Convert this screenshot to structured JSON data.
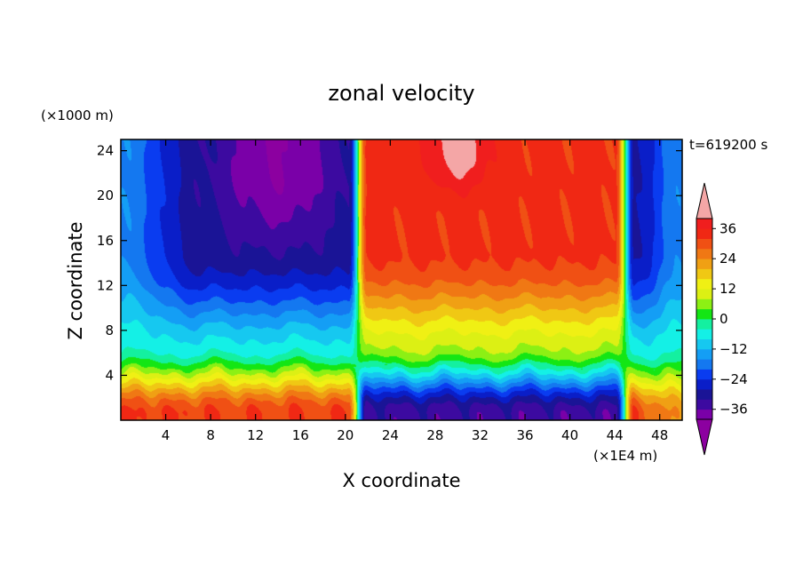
{
  "chart_data": {
    "type": "heatmap",
    "title": "zonal velocity",
    "xlabel": "X coordinate",
    "ylabel": "Z coordinate",
    "x_unit_label": "(×1E4 m)",
    "y_unit_label": "(×1000 m)",
    "time_label": "t=619200 s",
    "xlim": [
      0,
      50
    ],
    "ylim": [
      0,
      25
    ],
    "x_ticks": [
      4,
      8,
      12,
      16,
      20,
      24,
      28,
      32,
      36,
      40,
      44,
      48
    ],
    "y_ticks": [
      4,
      8,
      12,
      16,
      20,
      24
    ],
    "colorbar": {
      "levels": [
        -40,
        -36,
        -32,
        -28,
        -24,
        -20,
        -16,
        -12,
        -8,
        -4,
        0,
        4,
        8,
        12,
        16,
        20,
        24,
        28,
        32,
        36,
        40
      ],
      "tick_labels": [
        36,
        24,
        12,
        0,
        -12,
        -24,
        -36
      ],
      "under_color": "#8c00a0",
      "over_color": "#f4a6a6",
      "colors": [
        "#7a00a8",
        "#3c0aa0",
        "#1a1496",
        "#0a1ec8",
        "#0a3cf0",
        "#1478f0",
        "#149ef5",
        "#16c8f0",
        "#14f0e6",
        "#14f0a0",
        "#14e614",
        "#8cf014",
        "#dcf014",
        "#f0f014",
        "#f0c814",
        "#f0a014",
        "#f07814",
        "#f05014",
        "#f02814",
        "#f01e1e"
      ]
    },
    "field_description": {
      "upper_west_jet_peak": -40,
      "upper_east_jet_peak": 40,
      "west_jet_x_range": [
        0,
        21
      ],
      "east_jet_x_range": [
        21.5,
        44.5
      ],
      "shear_layer_height": 6,
      "lower_west_peak": 32,
      "lower_east_peak": -34,
      "upper_east_core_x": 30,
      "upper_west_core_x": 14
    }
  }
}
